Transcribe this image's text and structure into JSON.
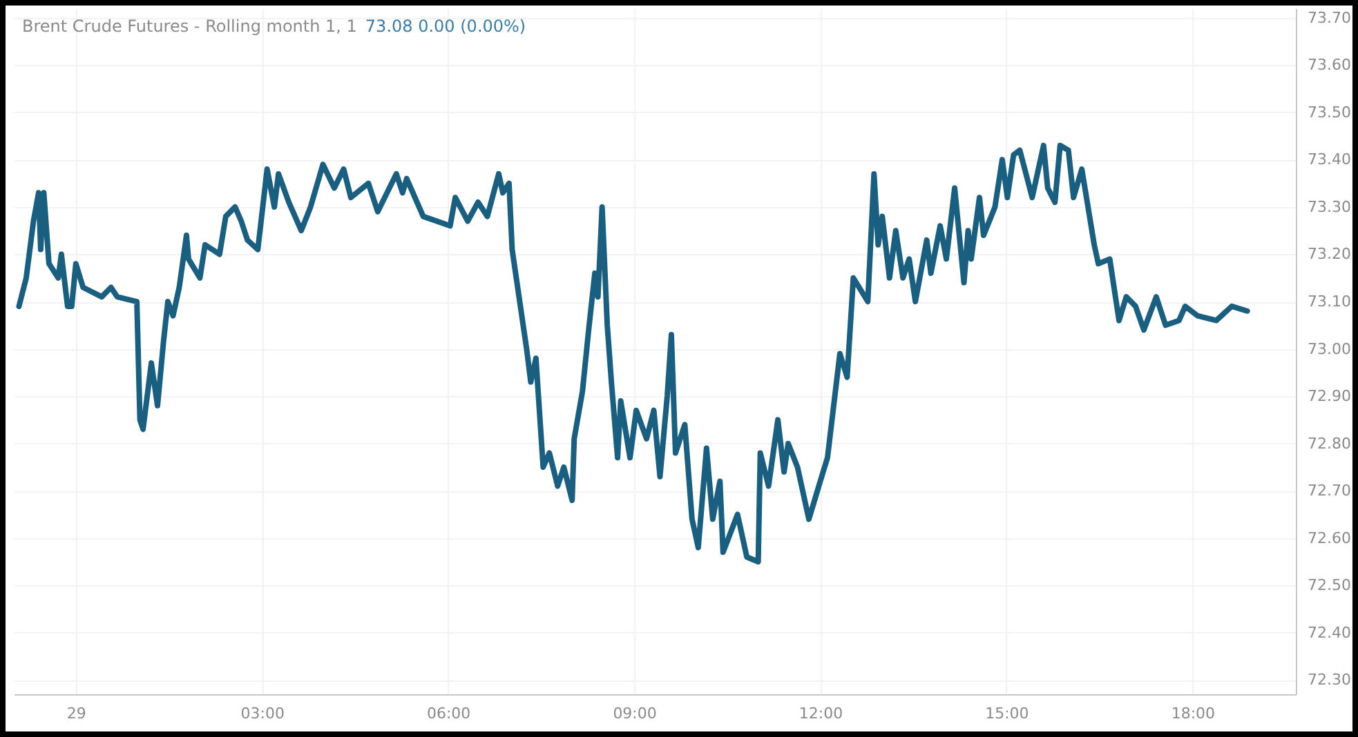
{
  "chart_data": {
    "type": "line",
    "title": "Brent Crude Futures - Rolling month 1, 1",
    "subtitle": "73.08  0.00 (0.00%)",
    "x": [
      "--11-28T23:05",
      "--11-28T23:12",
      "--11-28T23:19",
      "--11-28T23:24",
      "--11-28T23:26",
      "--11-28T23:29",
      "--11-28T23:34",
      "--11-28T23:43",
      "--11-28T23:46",
      "--11-28T23:52",
      "--11-28T23:56",
      "--11-29T00:00",
      "--11-29T00:07",
      "--11-29T00:25",
      "--11-29T00:34",
      "--11-29T00:40",
      "--11-29T00:59",
      "--11-29T01:02",
      "--11-29T01:05",
      "--11-29T01:13",
      "--11-29T01:19",
      "--11-29T01:25",
      "--11-29T01:29",
      "--11-29T01:34",
      "--11-29T01:40",
      "--11-29T01:47",
      "--11-29T01:49",
      "--11-29T02:00",
      "--11-29T02:05",
      "--11-29T02:19",
      "--11-29T02:25",
      "--11-29T02:34",
      "--11-29T02:40",
      "--11-29T02:46",
      "--11-29T02:56",
      "--11-29T03:05",
      "--11-29T03:12",
      "--11-29T03:16",
      "--11-29T03:26",
      "--11-29T03:38",
      "--11-29T03:47",
      "--11-29T03:59",
      "--11-29T04:10",
      "--11-29T04:19",
      "--11-29T04:26",
      "--11-29T04:43",
      "--11-29T04:52",
      "--11-29T05:10",
      "--11-29T05:16",
      "--11-29T05:20",
      "--11-29T05:36",
      "--11-29T06:02",
      "--11-29T06:07",
      "--11-29T06:19",
      "--11-29T06:29",
      "--11-29T06:38",
      "--11-29T06:49",
      "--11-29T06:53",
      "--11-29T06:59",
      "--11-29T07:02",
      "--11-29T07:10",
      "--11-29T07:16",
      "--11-29T07:20",
      "--11-29T07:25",
      "--11-29T07:32",
      "--11-29T07:38",
      "--11-29T07:46",
      "--11-29T07:52",
      "--11-29T08:00",
      "--11-29T08:02",
      "--11-29T08:10",
      "--11-29T08:16",
      "--11-29T08:22",
      "--11-29T08:25",
      "--11-29T08:29",
      "--11-29T08:34",
      "--11-29T08:38",
      "--11-29T08:44",
      "--11-29T08:47",
      "--11-29T08:56",
      "--11-29T09:02",
      "--11-29T09:12",
      "--11-29T09:19",
      "--11-29T09:25",
      "--11-29T09:32",
      "--11-29T09:36",
      "--11-29T09:40",
      "--11-29T09:49",
      "--11-29T09:56",
      "--11-29T10:02",
      "--11-29T10:10",
      "--11-29T10:16",
      "--11-29T10:23",
      "--11-29T10:26",
      "--11-29T10:40",
      "--11-29T10:49",
      "--11-29T11:00",
      "--11-29T11:02",
      "--11-29T11:10",
      "--11-29T11:19",
      "--11-29T11:25",
      "--11-29T11:29",
      "--11-29T11:38",
      "--11-29T11:49",
      "--11-29T12:00",
      "--11-29T12:07",
      "--11-29T12:19",
      "--11-29T12:26",
      "--11-29T12:32",
      "--11-29T12:46",
      "--11-29T12:52",
      "--11-29T12:56",
      "--11-29T13:00",
      "--11-29T13:07",
      "--11-29T13:13",
      "--11-29T13:20",
      "--11-29T13:26",
      "--11-29T13:32",
      "--11-29T13:43",
      "--11-29T13:47",
      "--11-29T13:56",
      "--11-29T14:02",
      "--11-29T14:10",
      "--11-29T14:19",
      "--11-29T14:23",
      "--11-29T14:26",
      "--11-29T14:34",
      "--11-29T14:38",
      "--11-29T14:49",
      "--11-29T14:56",
      "--11-29T15:01",
      "--11-29T15:07",
      "--11-29T15:13",
      "--11-29T15:25",
      "--11-29T15:36",
      "--11-29T15:40",
      "--11-29T15:47",
      "--11-29T15:52",
      "--11-29T16:00",
      "--11-29T16:05",
      "--11-29T16:13",
      "--11-29T16:19",
      "--11-29T16:25",
      "--11-29T16:29",
      "--11-29T16:40",
      "--11-29T16:49",
      "--11-29T16:56",
      "--11-29T17:05",
      "--11-29T17:13",
      "--11-29T17:25",
      "--11-29T17:34",
      "--11-29T17:47",
      "--11-29T17:53",
      "--11-29T18:05",
      "--11-29T18:23",
      "--11-29T18:38",
      "--11-29T18:53"
    ],
    "series": [
      {
        "color": "#1a5e80",
        "values": [
          73.09,
          73.15,
          73.27,
          73.33,
          73.21,
          73.33,
          73.18,
          73.15,
          73.2,
          73.09,
          73.09,
          73.18,
          73.13,
          73.11,
          73.13,
          73.11,
          73.1,
          72.85,
          72.83,
          72.97,
          72.88,
          73.02,
          73.1,
          73.07,
          73.13,
          73.24,
          73.19,
          73.15,
          73.22,
          73.2,
          73.28,
          73.3,
          73.27,
          73.23,
          73.21,
          73.38,
          73.3,
          73.37,
          73.31,
          73.25,
          73.3,
          73.39,
          73.34,
          73.38,
          73.32,
          73.35,
          73.29,
          73.37,
          73.33,
          73.36,
          73.28,
          73.26,
          73.32,
          73.27,
          73.31,
          73.28,
          73.37,
          73.33,
          73.35,
          73.21,
          73.09,
          73,
          72.93,
          72.98,
          72.75,
          72.78,
          72.71,
          72.75,
          72.68,
          72.81,
          72.91,
          73.04,
          73.16,
          73.11,
          73.3,
          73.05,
          72.93,
          72.77,
          72.89,
          72.77,
          72.87,
          72.81,
          72.87,
          72.73,
          72.9,
          73.03,
          72.78,
          72.84,
          72.64,
          72.58,
          72.79,
          72.64,
          72.72,
          72.57,
          72.65,
          72.56,
          72.55,
          72.78,
          72.71,
          72.85,
          72.74,
          72.8,
          72.75,
          72.64,
          72.72,
          72.77,
          72.99,
          72.94,
          73.15,
          73.1,
          73.37,
          73.22,
          73.28,
          73.15,
          73.25,
          73.15,
          73.19,
          73.1,
          73.23,
          73.16,
          73.26,
          73.19,
          73.34,
          73.14,
          73.25,
          73.19,
          73.32,
          73.24,
          73.3,
          73.4,
          73.32,
          73.41,
          73.42,
          73.32,
          73.43,
          73.34,
          73.31,
          73.43,
          73.42,
          73.32,
          73.38,
          73.3,
          73.22,
          73.18,
          73.19,
          73.06,
          73.11,
          73.09,
          73.04,
          73.11,
          73.05,
          73.06,
          73.09,
          73.07,
          73.06,
          73.09,
          73.08
        ]
      }
    ],
    "xlim": [
      "--11-28T23:00",
      "--11-29T19:40"
    ],
    "xticks": [
      {
        "value": "--11-29T00:00",
        "label": "29"
      },
      {
        "value": "--11-29T03:00",
        "label": "03:00"
      },
      {
        "value": "--11-29T06:00",
        "label": "06:00"
      },
      {
        "value": "--11-29T09:00",
        "label": "09:00"
      },
      {
        "value": "--11-29T12:00",
        "label": "12:00"
      },
      {
        "value": "--11-29T15:00",
        "label": "15:00"
      },
      {
        "value": "--11-29T18:00",
        "label": "18:00"
      }
    ],
    "ylim": [
      72.27,
      73.72
    ],
    "yticks": [
      {
        "value": 72.3,
        "label": "72.30"
      },
      {
        "value": 72.4,
        "label": "72.40"
      },
      {
        "value": 72.5,
        "label": "72.50"
      },
      {
        "value": 72.6,
        "label": "72.60"
      },
      {
        "value": 72.7,
        "label": "72.70"
      },
      {
        "value": 72.8,
        "label": "72.80"
      },
      {
        "value": 72.9,
        "label": "72.90"
      },
      {
        "value": 73,
        "label": "73.00"
      },
      {
        "value": 73.1,
        "label": "73.10"
      },
      {
        "value": 73.2,
        "label": "73.20"
      },
      {
        "value": 73.3,
        "label": "73.30"
      },
      {
        "value": 73.4,
        "label": "73.40"
      },
      {
        "value": 73.5,
        "label": "73.50"
      },
      {
        "value": 73.6,
        "label": "73.60"
      },
      {
        "value": 73.7,
        "label": "73.70"
      }
    ],
    "grid": true,
    "legend": false,
    "line_style": "solid",
    "marker": "none"
  }
}
